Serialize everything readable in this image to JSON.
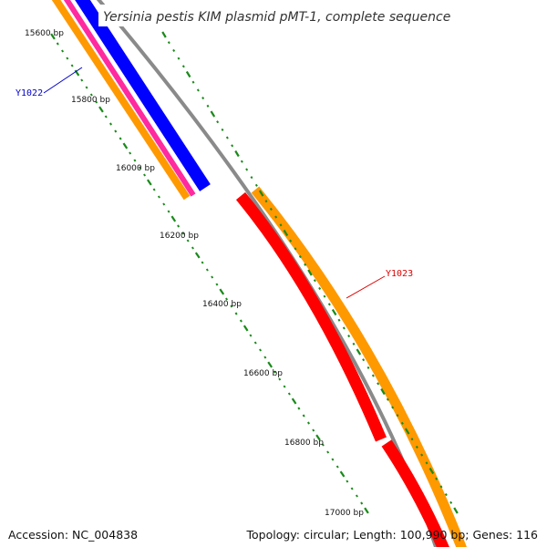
{
  "title": "Yersinia pestis KIM plasmid pMT-1, complete sequence",
  "backbone_color": "#8a8a8a",
  "tick_color": "#1a8a1a",
  "bp_labels": [
    "15600 bp",
    "15800 bp",
    "16000 bp",
    "16200 bp",
    "16400 bp",
    "16600 bp",
    "16800 bp",
    "17000 bp"
  ],
  "gene_tracks": [
    {
      "name": "Y1022",
      "label_color": "#0000cc",
      "features": [
        {
          "track": "orange-outer",
          "color": "#ff9900"
        },
        {
          "track": "magenta",
          "color": "#ff2aa0"
        },
        {
          "track": "blue-cds",
          "color": "#0000ff"
        }
      ]
    },
    {
      "name": "Y1023",
      "label_color": "#dd0000",
      "features": [
        {
          "track": "red-cds",
          "color": "#ff0000"
        },
        {
          "track": "orange-gene",
          "color": "#ff9900"
        }
      ]
    }
  ],
  "footer": {
    "accession": "Accession: NC_004838",
    "summary": "Topology: circular; Length: 100,990 bp; Genes: 116"
  }
}
